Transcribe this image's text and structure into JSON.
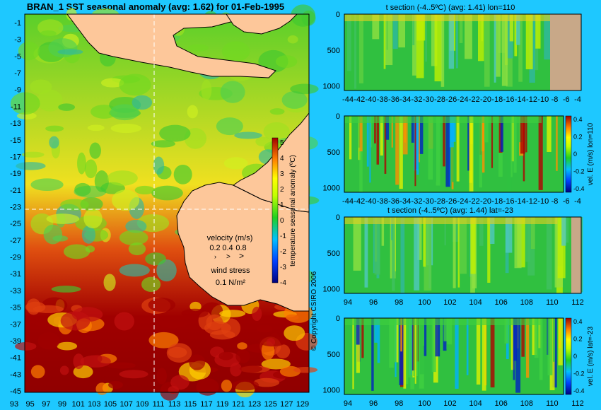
{
  "main_map": {
    "title": "BRAN_1 SST seasonal anomaly (avg: 1.62) for 01-Feb-1995",
    "y_ticks": [
      "-1",
      "-3",
      "-5",
      "-7",
      "-9",
      "-11",
      "-13",
      "-15",
      "-17",
      "-19",
      "-21",
      "-23",
      "-25",
      "-27",
      "-29",
      "-31",
      "-33",
      "-35",
      "-37",
      "-39",
      "-41",
      "-43",
      "-45"
    ],
    "x_ticks": [
      "93",
      "95",
      "97",
      "99",
      "101",
      "103",
      "105",
      "107",
      "109",
      "111",
      "113",
      "115",
      "117",
      "119",
      "121",
      "123",
      "125",
      "127",
      "129"
    ],
    "colorbar_label": "temperature seasonal anomaly (ºC)",
    "colorbar_ticks": [
      "5",
      "4",
      "3",
      "2",
      "1",
      "0",
      "-1",
      "-2",
      "-3",
      "-4"
    ],
    "velocity_label": "velocity (m/s)",
    "velocity_scale": [
      "0.2",
      "0.4",
      "0.8"
    ],
    "wind_label": "wind stress",
    "wind_value": "0.1 N/m²",
    "copyright": "© Copyright CSIRO 2006"
  },
  "panels": [
    {
      "title": "t section (-4..5ºC) (avg: 1.41) lon=110",
      "y_ticks": [
        "0",
        "500",
        "1000"
      ],
      "x_ticks": [
        "-44",
        "-42",
        "-40",
        "-38",
        "-36",
        "-34",
        "-32",
        "-30",
        "-28",
        "-26",
        "-24",
        "-22",
        "-20",
        "-18",
        "-16",
        "-14",
        "-12",
        "-10",
        "-8",
        "-6",
        "-4"
      ]
    },
    {
      "title": "",
      "y_ticks": [
        "0",
        "500",
        "1000"
      ],
      "x_ticks": [
        "-44",
        "-42",
        "-40",
        "-38",
        "-36",
        "-34",
        "-32",
        "-30",
        "-28",
        "-26",
        "-24",
        "-22",
        "-20",
        "-18",
        "-16",
        "-14",
        "-12",
        "-10",
        "-8",
        "-6",
        "-4"
      ],
      "cb_label": "vel. E (m/s) lon=110",
      "cb_ticks": [
        "0.4",
        "0.2",
        "0",
        "-0.2",
        "-0.4"
      ]
    },
    {
      "title": "t section (-4..5ºC) (avg: 1.44) lat=-23",
      "y_ticks": [
        "0",
        "500",
        "1000"
      ],
      "x_ticks": [
        "94",
        "96",
        "98",
        "100",
        "102",
        "104",
        "106",
        "108",
        "110",
        "112"
      ]
    },
    {
      "title": "",
      "y_ticks": [
        "0",
        "500",
        "1000"
      ],
      "x_ticks": [
        "94",
        "96",
        "98",
        "100",
        "102",
        "104",
        "106",
        "108",
        "110",
        "112"
      ],
      "cb_label": "vel. E (m/s) lat=-23",
      "cb_ticks": [
        "0.4",
        "0.2",
        "0",
        "-0.2",
        "-0.4"
      ]
    }
  ],
  "chart_data": [
    {
      "type": "heatmap",
      "title": "BRAN_1 SST seasonal anomaly (avg: 1.62) for 01-Feb-1995",
      "x_range": [
        93,
        130
      ],
      "y_range": [
        -45,
        0
      ],
      "value_range": [
        -4,
        5
      ],
      "unit": "ºC",
      "regions": [
        {
          "area": "south of -35",
          "anomaly": "4 to 5+"
        },
        {
          "area": "tropics",
          "anomaly": "0 to 2"
        }
      ]
    },
    {
      "type": "heatmap",
      "title": "t section (-4..5ºC) (avg: 1.41) lon=110",
      "x_range": [
        -45,
        -3
      ],
      "y_range": [
        1050,
        0
      ]
    },
    {
      "type": "heatmap",
      "title": "",
      "x_range": [
        -45,
        -3
      ],
      "y_range": [
        1050,
        0
      ],
      "value_range": [
        -0.5,
        0.5
      ]
    },
    {
      "type": "heatmap",
      "title": "t section (-4..5ºC) (avg: 1.44) lat=-23",
      "x_range": [
        93,
        114
      ],
      "y_range": [
        1050,
        0
      ]
    },
    {
      "type": "heatmap",
      "title": "",
      "x_range": [
        93,
        114
      ],
      "y_range": [
        1050,
        0
      ],
      "value_range": [
        -0.5,
        0.5
      ]
    }
  ]
}
